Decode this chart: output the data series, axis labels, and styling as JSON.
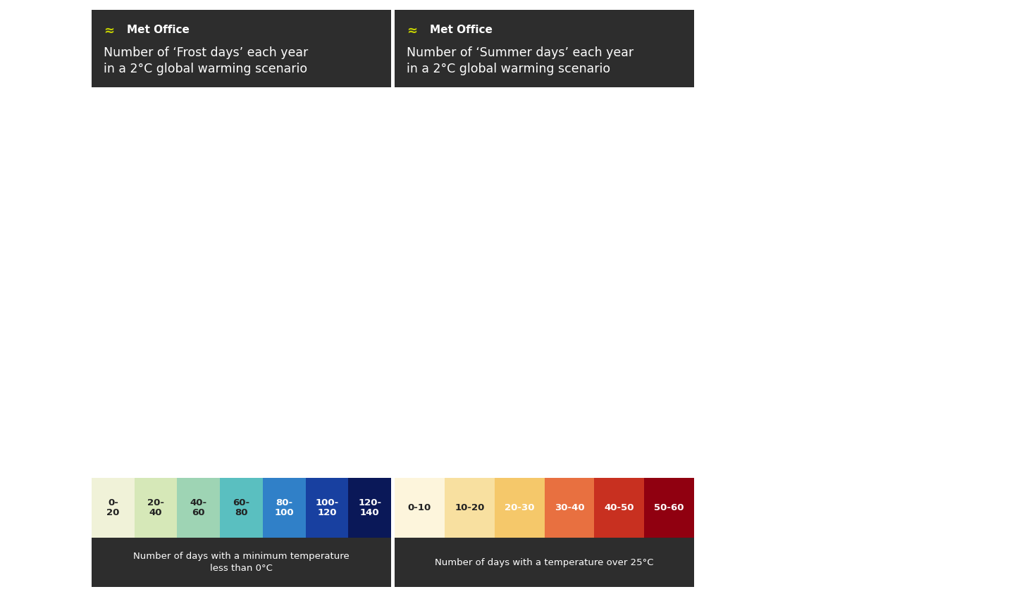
{
  "outer_bg": "#f0f0f0",
  "white_gap": "#ffffff",
  "header_bg": "#2d2d2d",
  "logo_color": "#c8d400",
  "logo_text": "Met Office",
  "title1": "Number of ‘Frost days’ each year\nin a 2°C global warming scenario",
  "title2": "Number of ‘Summer days’ each year\nin a 2°C global warming scenario",
  "sea_color": "#c8e8f5",
  "ireland_fill": "#e8e8e0",
  "ireland_border": "#aaaaaa",
  "legend1_labels": [
    "0-\n20",
    "20-\n40",
    "40-\n60",
    "60-\n80",
    "80-\n100",
    "100-\n120",
    "120-\n140"
  ],
  "legend1_colors": [
    "#f0f2d8",
    "#d6e8b8",
    "#9ed4b4",
    "#5abfc0",
    "#3080c8",
    "#1840a0",
    "#0a1858"
  ],
  "legend1_subtitle": "Number of days with a minimum temperature\nless than 0°C",
  "legend2_labels": [
    "0-10",
    "10-20",
    "20-30",
    "30-40",
    "40-50",
    "50-60"
  ],
  "legend2_colors": [
    "#fdf5dc",
    "#f8e0a0",
    "#f5c86a",
    "#e87040",
    "#c83020",
    "#900010"
  ],
  "legend2_subtitle": "Number of days with a temperature over 25°C",
  "frost_c0": "#f0f2d8",
  "frost_c1": "#d6e8b8",
  "frost_c2": "#9ed4b4",
  "frost_c3": "#5abfc0",
  "frost_c4": "#3080c8",
  "frost_c5": "#1840a0",
  "frost_c6": "#0a1858",
  "summer_c0": "#fdf5dc",
  "summer_c1": "#f8e0a0",
  "summer_c2": "#f5c86a",
  "summer_c3": "#e87040",
  "summer_c4": "#c83020",
  "summer_c5": "#900010"
}
